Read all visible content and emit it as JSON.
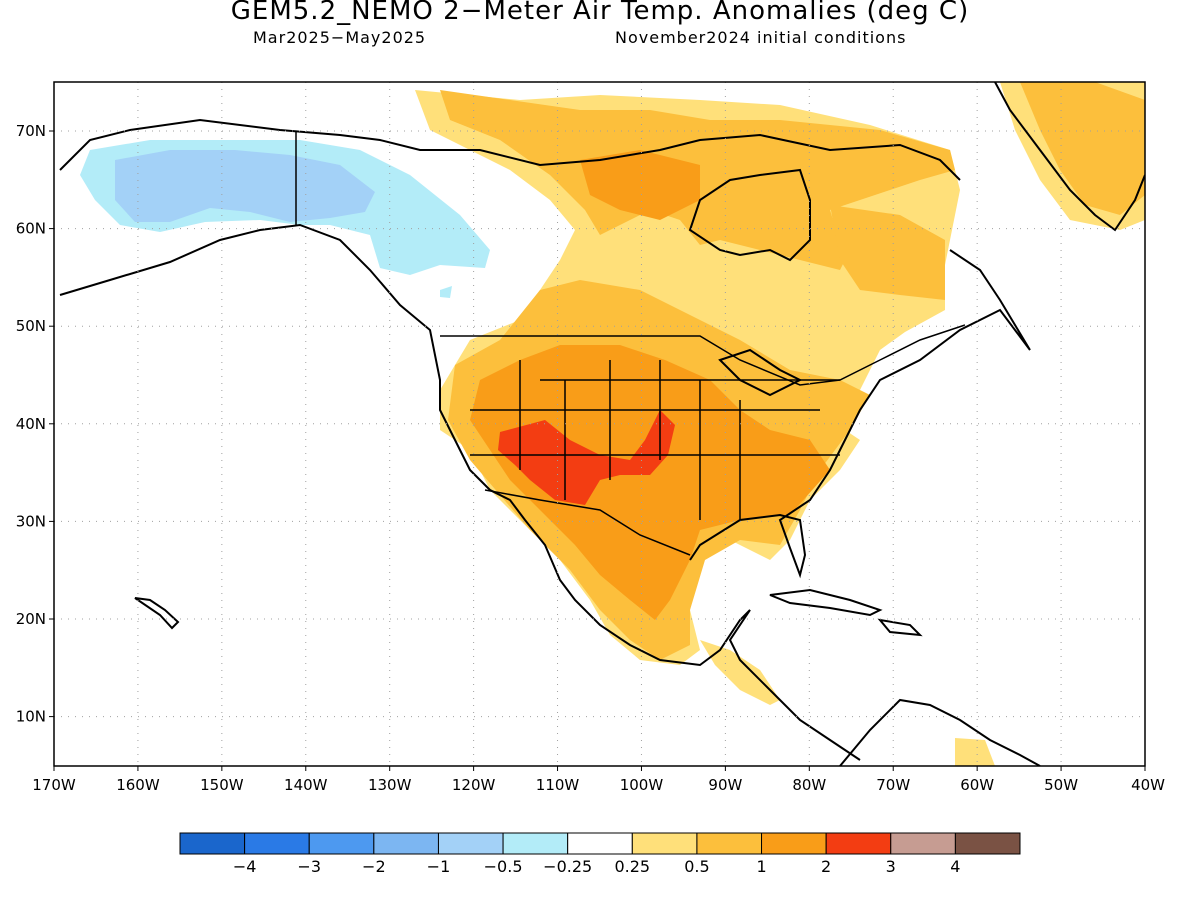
{
  "title": "GEM5.2_NEMO 2−Meter Air Temp. Anomalies (deg C)",
  "period": "Mar2025−May2025",
  "initial_conditions": "November2024 initial conditions",
  "lat_labels": [
    "70N",
    "60N",
    "50N",
    "40N",
    "30N",
    "20N",
    "10N"
  ],
  "lon_labels": [
    "170W",
    "160W",
    "150W",
    "140W",
    "130W",
    "120W",
    "110W",
    "100W",
    "90W",
    "80W",
    "70W",
    "60W",
    "50W",
    "40W"
  ],
  "colorbar": {
    "colors": [
      "#1a66cc",
      "#2a7ae6",
      "#4d99f0",
      "#7cb6f2",
      "#a3d1f7",
      "#b3ecf8",
      "#ffffff",
      "#ffe07a",
      "#fcbf3c",
      "#f99d18",
      "#f33d12",
      "#c69c92",
      "#7a5244"
    ],
    "labels": [
      "−4",
      "−3",
      "−2",
      "−1",
      "−0.5",
      "−0.25",
      "0.25",
      "0.5",
      "1",
      "2",
      "3",
      "4"
    ]
  },
  "colors": {
    "cold_light": "#b3ecf8",
    "cold_mid": "#a3d1f7",
    "warm_light": "#ffe07a",
    "warm_mid": "#fcbf3c",
    "warm_strong": "#f99d18",
    "warm_peak": "#f33d12"
  }
}
